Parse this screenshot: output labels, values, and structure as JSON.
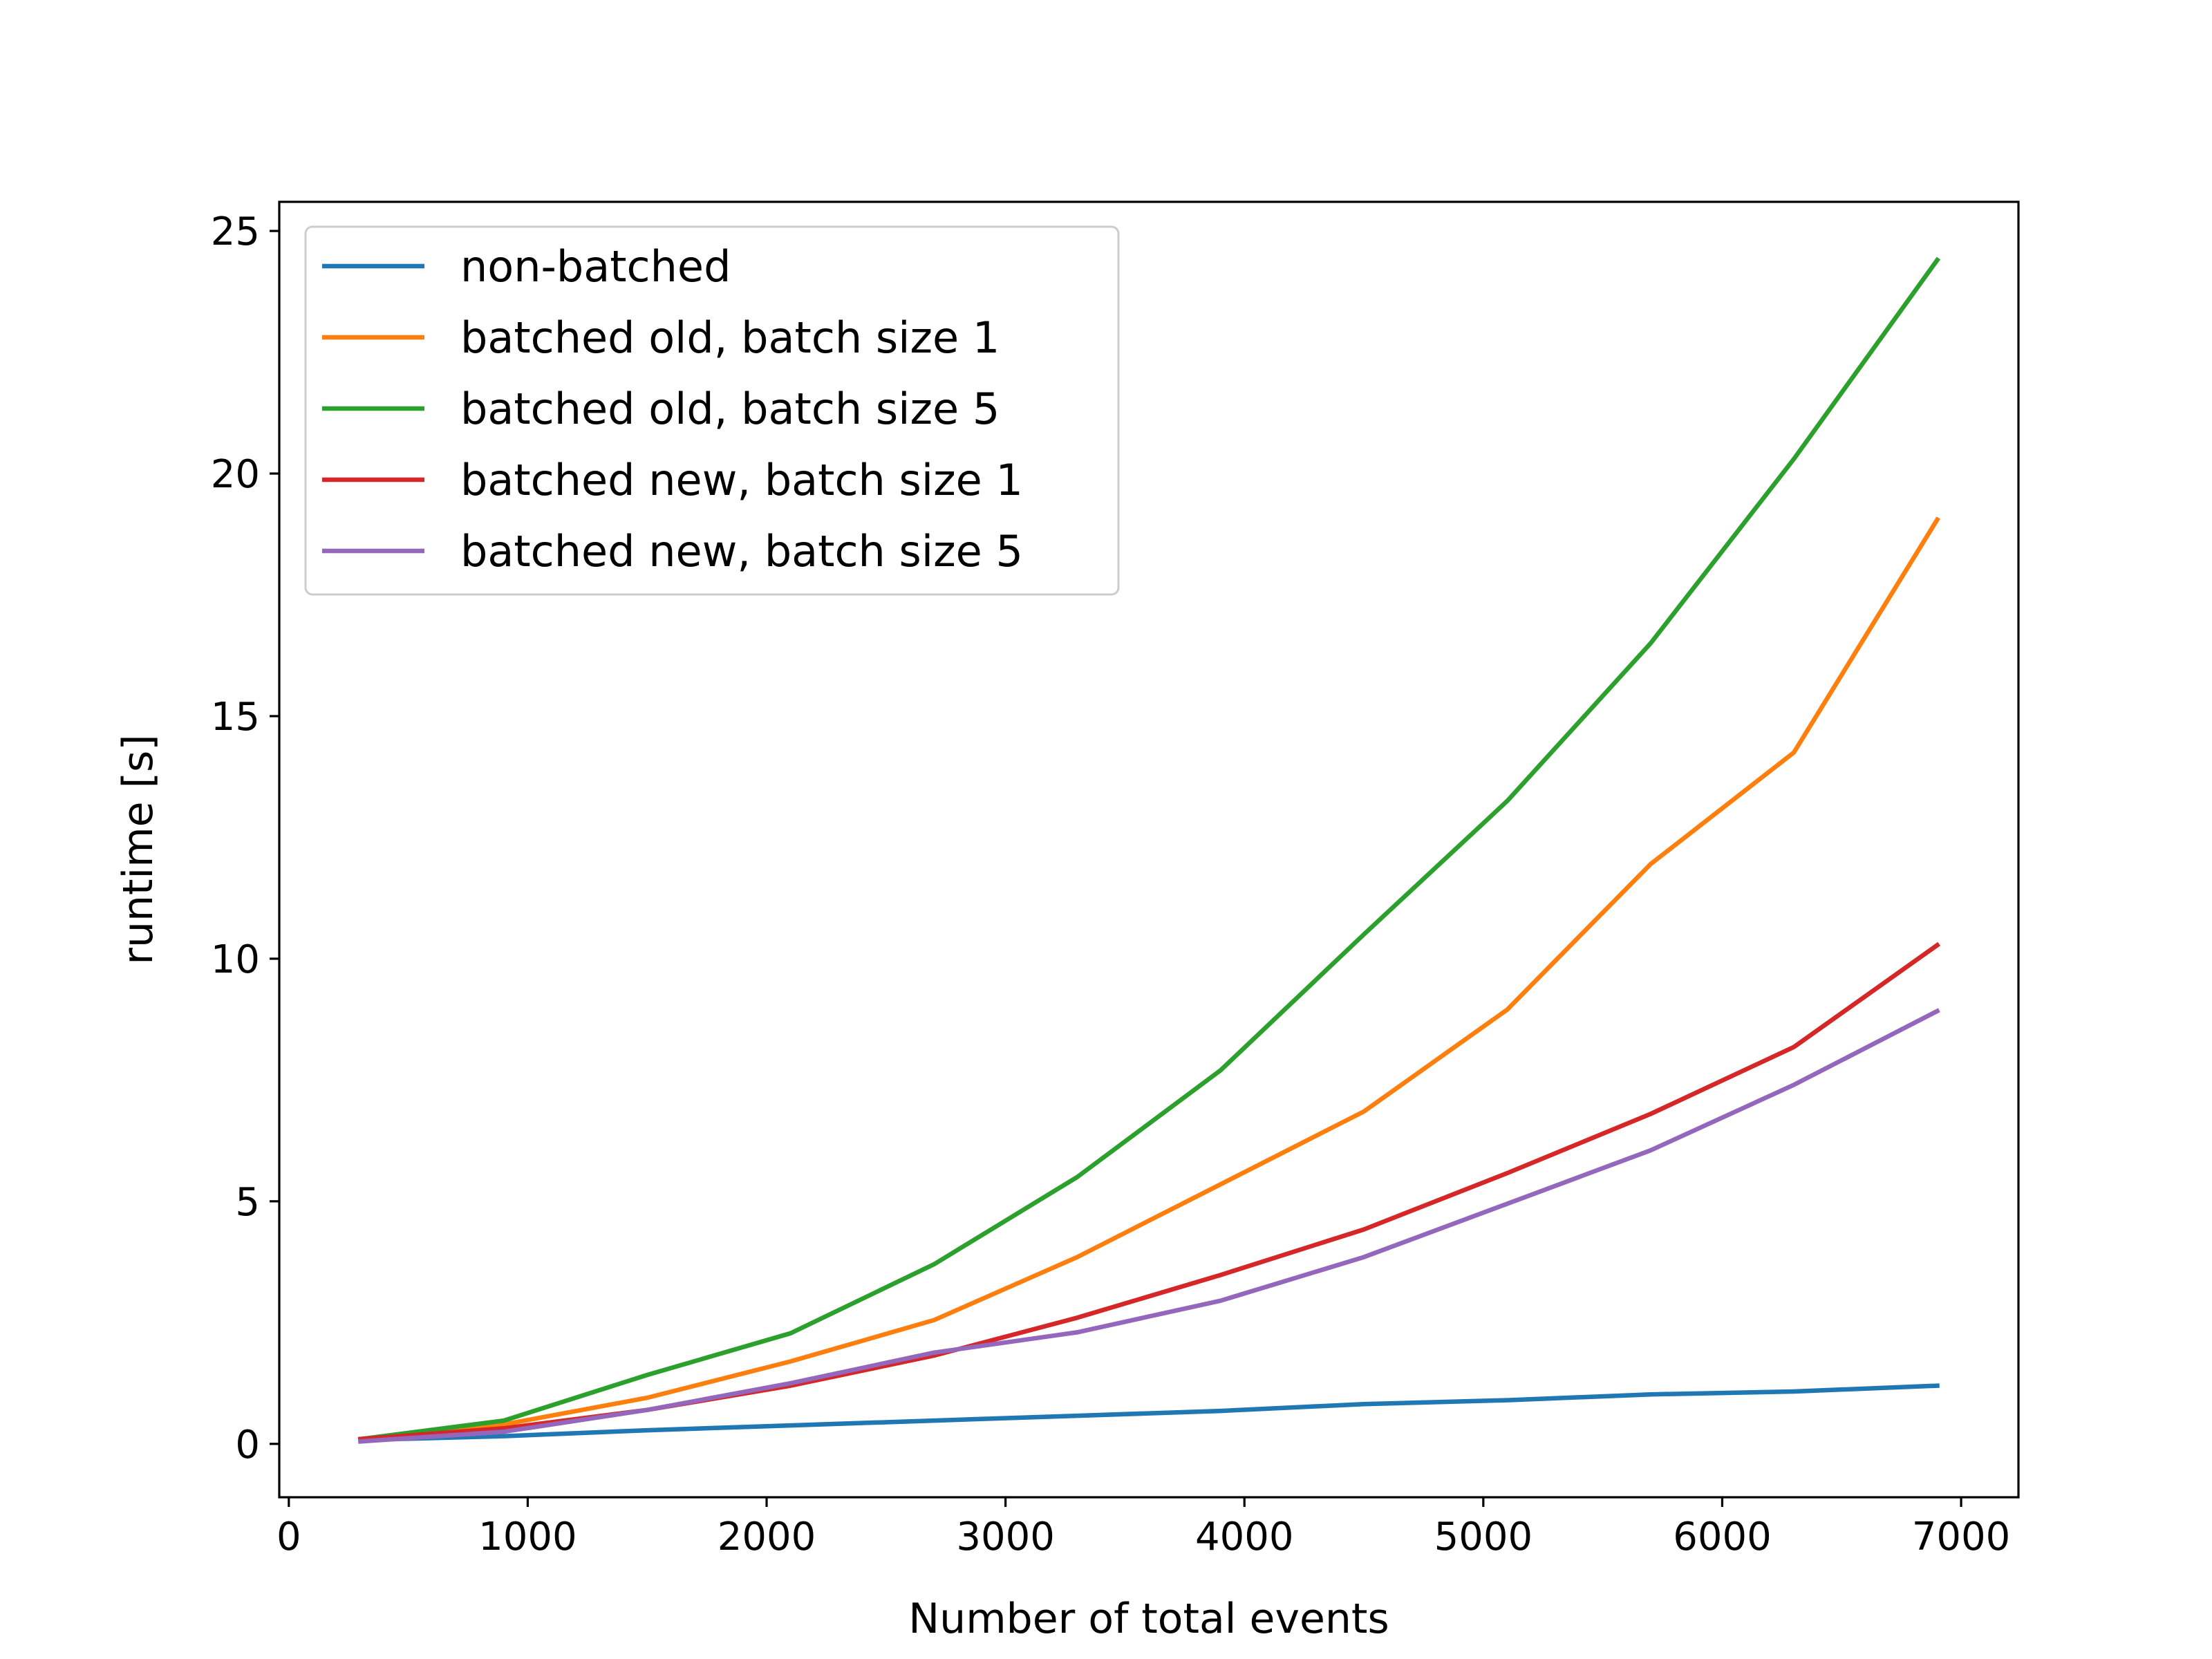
{
  "chart_data": {
    "type": "line",
    "title": "",
    "xlabel": "Number of total events",
    "ylabel": "runtime [s]",
    "xlim": [
      -40,
      7240
    ],
    "ylim": [
      -1.1,
      25.6
    ],
    "xticks": [
      0,
      1000,
      2000,
      3000,
      4000,
      5000,
      6000,
      7000
    ],
    "yticks": [
      0,
      5,
      10,
      15,
      20,
      25
    ],
    "grid": false,
    "legend_position": "top-left",
    "x": [
      300,
      900,
      1500,
      2100,
      2700,
      3300,
      3900,
      4500,
      5100,
      5700,
      6300,
      6900
    ],
    "series": [
      {
        "name": "non-batched",
        "color": "#1f77b4",
        "values": [
          0.08,
          0.16,
          0.28,
          0.38,
          0.48,
          0.58,
          0.68,
          0.82,
          0.9,
          1.02,
          1.08,
          1.2
        ]
      },
      {
        "name": "batched old, batch size 1",
        "color": "#ff7f0e",
        "values": [
          0.1,
          0.4,
          0.95,
          1.7,
          2.55,
          3.85,
          5.35,
          6.85,
          8.95,
          11.95,
          14.25,
          19.05
        ]
      },
      {
        "name": "batched old, batch size 5",
        "color": "#2ca02c",
        "values": [
          0.1,
          0.48,
          1.42,
          2.28,
          3.7,
          5.5,
          7.7,
          10.5,
          13.25,
          16.5,
          20.3,
          24.4
        ]
      },
      {
        "name": "batched new, batch size 1",
        "color": "#d62728",
        "values": [
          0.1,
          0.32,
          0.7,
          1.2,
          1.82,
          2.6,
          3.48,
          4.42,
          5.58,
          6.8,
          8.18,
          10.28
        ]
      },
      {
        "name": "batched new, batch size 5",
        "color": "#9467bd",
        "values": [
          0.05,
          0.25,
          0.7,
          1.25,
          1.88,
          2.3,
          2.95,
          3.85,
          4.95,
          6.05,
          7.4,
          8.92
        ]
      }
    ]
  }
}
